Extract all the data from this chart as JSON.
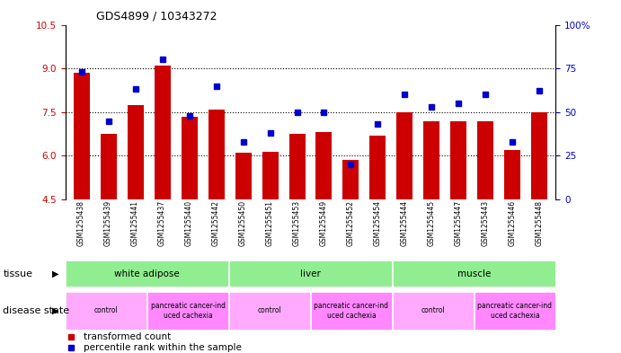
{
  "title": "GDS4899 / 10343272",
  "samples": [
    "GSM1255438",
    "GSM1255439",
    "GSM1255441",
    "GSM1255437",
    "GSM1255440",
    "GSM1255442",
    "GSM1255450",
    "GSM1255451",
    "GSM1255453",
    "GSM1255449",
    "GSM1255452",
    "GSM1255454",
    "GSM1255444",
    "GSM1255445",
    "GSM1255447",
    "GSM1255443",
    "GSM1255446",
    "GSM1255448"
  ],
  "bar_values": [
    8.85,
    6.75,
    7.75,
    9.1,
    7.35,
    7.6,
    6.1,
    6.15,
    6.75,
    6.8,
    5.85,
    6.7,
    7.5,
    7.2,
    7.2,
    7.2,
    6.2,
    7.5
  ],
  "percentile_values": [
    73,
    45,
    63,
    80,
    48,
    65,
    33,
    38,
    50,
    50,
    20,
    43,
    60,
    53,
    55,
    60,
    33,
    62
  ],
  "bar_color": "#cc0000",
  "percentile_color": "#0000cc",
  "ylim_left": [
    4.5,
    10.5
  ],
  "ylim_right": [
    0,
    100
  ],
  "yticks_left": [
    4.5,
    6.0,
    7.5,
    9.0,
    10.5
  ],
  "yticks_right": [
    0,
    25,
    50,
    75,
    100
  ],
  "background_color": "#ffffff",
  "tick_label_color_left": "#cc0000",
  "tick_label_color_right": "#0000cc",
  "bar_width": 0.6,
  "legend_items": [
    {
      "label": "transformed count",
      "color": "#cc0000"
    },
    {
      "label": "percentile rank within the sample",
      "color": "#0000cc"
    }
  ],
  "tissue_data": [
    {
      "label": "white adipose",
      "start": 0,
      "end": 6,
      "color": "#90ee90"
    },
    {
      "label": "liver",
      "start": 6,
      "end": 12,
      "color": "#90ee90"
    },
    {
      "label": "muscle",
      "start": 12,
      "end": 18,
      "color": "#90ee90"
    }
  ],
  "disease_data": [
    {
      "label": "control",
      "start": 0,
      "end": 3,
      "color": "#ffaaff"
    },
    {
      "label": "pancreatic cancer-ind\nuced cachexia",
      "start": 3,
      "end": 6,
      "color": "#ff88ff"
    },
    {
      "label": "control",
      "start": 6,
      "end": 9,
      "color": "#ffaaff"
    },
    {
      "label": "pancreatic cancer-ind\nuced cachexia",
      "start": 9,
      "end": 12,
      "color": "#ff88ff"
    },
    {
      "label": "control",
      "start": 12,
      "end": 15,
      "color": "#ffaaff"
    },
    {
      "label": "pancreatic cancer-ind\nuced cachexia",
      "start": 15,
      "end": 18,
      "color": "#ff88ff"
    }
  ]
}
